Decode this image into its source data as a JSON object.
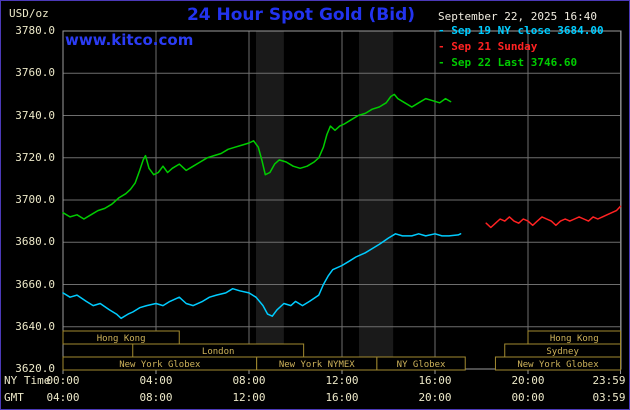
{
  "header": {
    "title": "24 Hour Spot Gold (Bid)",
    "datetime": "September 22, 2025 16:40",
    "watermark": "www.kitco.com",
    "legend": [
      {
        "label": "- Sep 19 NY close 3684.00",
        "color": "#00ccff"
      },
      {
        "label": "- Sep 21 Sunday",
        "color": "#ff2222"
      },
      {
        "label": "- Sep 22 Last 3746.60",
        "color": "#00cc00"
      }
    ]
  },
  "axes": {
    "y_unit": "USD/oz",
    "ny_caption": "NY Time",
    "gmt_caption": "GMT",
    "y_tick_labels": [
      "3780.0",
      "3760.0",
      "3740.0",
      "3720.0",
      "3700.0",
      "3680.0",
      "3660.0",
      "3640.0",
      "3620.0"
    ],
    "ny_tick_labels": [
      "00:00",
      "04:00",
      "08:00",
      "12:00",
      "16:00",
      "20:00",
      "23:59"
    ],
    "gmt_tick_labels": [
      "04:00",
      "08:00",
      "12:00",
      "16:00",
      "20:00",
      "00:00",
      "03:59"
    ]
  },
  "colors": {
    "background": "#000000",
    "outer_border": "#4b39b8",
    "grid": "#6e6e6e",
    "plot_border": "#9c9c9c",
    "axis_text": "#ece8c8",
    "title": "#2233ee",
    "watermark": "#2b3cf5",
    "band": "#1a1a1a",
    "session_border": "#a28a30",
    "session_text": "#cdb25a"
  },
  "chart_data": {
    "type": "line",
    "title": "24 Hour Spot Gold (Bid)",
    "xlabel": "Time (NY Time / GMT)",
    "ylabel": "USD/oz",
    "ylim": [
      3620,
      3780
    ],
    "xlim_hours": [
      0,
      24
    ],
    "y_ticks": [
      3780,
      3760,
      3740,
      3720,
      3700,
      3680,
      3660,
      3640,
      3620
    ],
    "x_tick_hours": [
      0,
      4,
      8,
      12,
      16,
      20,
      23.98
    ],
    "grid": true,
    "legend_position": "top-right",
    "bands": [
      {
        "from": 8.3,
        "to": 9.5
      },
      {
        "from": 12.73,
        "to": 14.2
      }
    ],
    "series": [
      {
        "name": "Sep 19 NY close 3684.00",
        "color": "#00ccff",
        "points": [
          [
            0,
            3656
          ],
          [
            0.3,
            3654
          ],
          [
            0.6,
            3655
          ],
          [
            1,
            3652
          ],
          [
            1.3,
            3650
          ],
          [
            1.6,
            3651
          ],
          [
            2,
            3648
          ],
          [
            2.3,
            3646
          ],
          [
            2.5,
            3644
          ],
          [
            2.8,
            3646
          ],
          [
            3,
            3647
          ],
          [
            3.3,
            3649
          ],
          [
            3.6,
            3650
          ],
          [
            4,
            3651
          ],
          [
            4.3,
            3650
          ],
          [
            4.6,
            3652
          ],
          [
            5,
            3654
          ],
          [
            5.3,
            3651
          ],
          [
            5.6,
            3650
          ],
          [
            6,
            3652
          ],
          [
            6.3,
            3654
          ],
          [
            6.6,
            3655
          ],
          [
            7,
            3656
          ],
          [
            7.3,
            3658
          ],
          [
            7.6,
            3657
          ],
          [
            8,
            3656
          ],
          [
            8.3,
            3654
          ],
          [
            8.6,
            3650
          ],
          [
            8.8,
            3646
          ],
          [
            9,
            3645
          ],
          [
            9.2,
            3648
          ],
          [
            9.5,
            3651
          ],
          [
            9.8,
            3650
          ],
          [
            10,
            3652
          ],
          [
            10.3,
            3650
          ],
          [
            10.6,
            3652
          ],
          [
            11,
            3655
          ],
          [
            11.2,
            3660
          ],
          [
            11.4,
            3664
          ],
          [
            11.6,
            3667
          ],
          [
            12,
            3669
          ],
          [
            12.3,
            3671
          ],
          [
            12.6,
            3673
          ],
          [
            13,
            3675
          ],
          [
            13.3,
            3677
          ],
          [
            13.6,
            3679
          ],
          [
            14,
            3682
          ],
          [
            14.3,
            3684
          ],
          [
            14.6,
            3683
          ],
          [
            15,
            3683
          ],
          [
            15.3,
            3684
          ],
          [
            15.6,
            3683
          ],
          [
            16,
            3684
          ],
          [
            16.3,
            3683
          ],
          [
            16.6,
            3683
          ],
          [
            17,
            3683.5
          ],
          [
            17.1,
            3684
          ]
        ]
      },
      {
        "name": "Sep 21 Sunday",
        "color": "#ff2222",
        "points": [
          [
            18.2,
            3689
          ],
          [
            18.4,
            3687
          ],
          [
            18.6,
            3689
          ],
          [
            18.8,
            3691
          ],
          [
            19,
            3690
          ],
          [
            19.2,
            3692
          ],
          [
            19.4,
            3690
          ],
          [
            19.6,
            3689
          ],
          [
            19.8,
            3691
          ],
          [
            20,
            3690
          ],
          [
            20.2,
            3688
          ],
          [
            20.4,
            3690
          ],
          [
            20.6,
            3692
          ],
          [
            20.8,
            3691
          ],
          [
            21,
            3690
          ],
          [
            21.2,
            3688
          ],
          [
            21.4,
            3690
          ],
          [
            21.6,
            3691
          ],
          [
            21.8,
            3690
          ],
          [
            22,
            3691
          ],
          [
            22.2,
            3692
          ],
          [
            22.4,
            3691
          ],
          [
            22.6,
            3690
          ],
          [
            22.8,
            3692
          ],
          [
            23,
            3691
          ],
          [
            23.2,
            3692
          ],
          [
            23.4,
            3693
          ],
          [
            23.6,
            3694
          ],
          [
            23.8,
            3695
          ],
          [
            23.98,
            3697
          ]
        ]
      },
      {
        "name": "Sep 22 Last 3746.60",
        "color": "#00cc00",
        "points": [
          [
            0,
            3694
          ],
          [
            0.3,
            3692
          ],
          [
            0.6,
            3693
          ],
          [
            0.9,
            3691
          ],
          [
            1.2,
            3693
          ],
          [
            1.5,
            3695
          ],
          [
            1.8,
            3696
          ],
          [
            2.1,
            3698
          ],
          [
            2.4,
            3701
          ],
          [
            2.7,
            3703
          ],
          [
            2.9,
            3705
          ],
          [
            3.1,
            3708
          ],
          [
            3.3,
            3714
          ],
          [
            3.45,
            3719
          ],
          [
            3.55,
            3721
          ],
          [
            3.7,
            3715
          ],
          [
            3.9,
            3712
          ],
          [
            4.1,
            3713
          ],
          [
            4.3,
            3716
          ],
          [
            4.5,
            3713
          ],
          [
            4.7,
            3715
          ],
          [
            5,
            3717
          ],
          [
            5.3,
            3714
          ],
          [
            5.6,
            3716
          ],
          [
            5.9,
            3718
          ],
          [
            6.2,
            3720
          ],
          [
            6.5,
            3721
          ],
          [
            6.8,
            3722
          ],
          [
            7.1,
            3724
          ],
          [
            7.4,
            3725
          ],
          [
            7.7,
            3726
          ],
          [
            8,
            3727
          ],
          [
            8.2,
            3728
          ],
          [
            8.4,
            3725
          ],
          [
            8.55,
            3719
          ],
          [
            8.7,
            3712
          ],
          [
            8.9,
            3713
          ],
          [
            9.1,
            3717
          ],
          [
            9.3,
            3719
          ],
          [
            9.6,
            3718
          ],
          [
            9.9,
            3716
          ],
          [
            10.2,
            3715
          ],
          [
            10.5,
            3716
          ],
          [
            10.8,
            3718
          ],
          [
            11,
            3720
          ],
          [
            11.2,
            3725
          ],
          [
            11.35,
            3731
          ],
          [
            11.5,
            3735
          ],
          [
            11.7,
            3733
          ],
          [
            11.9,
            3735
          ],
          [
            12.1,
            3736
          ],
          [
            12.4,
            3738
          ],
          [
            12.7,
            3740
          ],
          [
            13,
            3741
          ],
          [
            13.3,
            3743
          ],
          [
            13.6,
            3744
          ],
          [
            13.9,
            3746
          ],
          [
            14.1,
            3749
          ],
          [
            14.25,
            3750
          ],
          [
            14.4,
            3748
          ],
          [
            14.7,
            3746
          ],
          [
            15,
            3744
          ],
          [
            15.3,
            3746
          ],
          [
            15.6,
            3748
          ],
          [
            15.9,
            3747
          ],
          [
            16.2,
            3746
          ],
          [
            16.45,
            3748
          ],
          [
            16.67,
            3746.6
          ]
        ]
      }
    ],
    "sessions": [
      {
        "row": 0,
        "label": "Hong Kong",
        "from": 0,
        "to": 5
      },
      {
        "row": 0,
        "label": "Hong Kong",
        "from": 20,
        "to": 23.98
      },
      {
        "row": 1,
        "label": "London",
        "from": 3.0,
        "to": 10.35
      },
      {
        "row": 1,
        "label": "Sydney",
        "from": 19.0,
        "to": 23.98
      },
      {
        "row": 2,
        "label": "New York Globex",
        "from": 0,
        "to": 8.33
      },
      {
        "row": 2,
        "label": "New York NYMEX",
        "from": 8.33,
        "to": 13.5
      },
      {
        "row": 2,
        "label": "NY Globex",
        "from": 13.5,
        "to": 17.3
      },
      {
        "row": 2,
        "label": "New York Globex",
        "from": 18.6,
        "to": 23.98
      }
    ]
  }
}
